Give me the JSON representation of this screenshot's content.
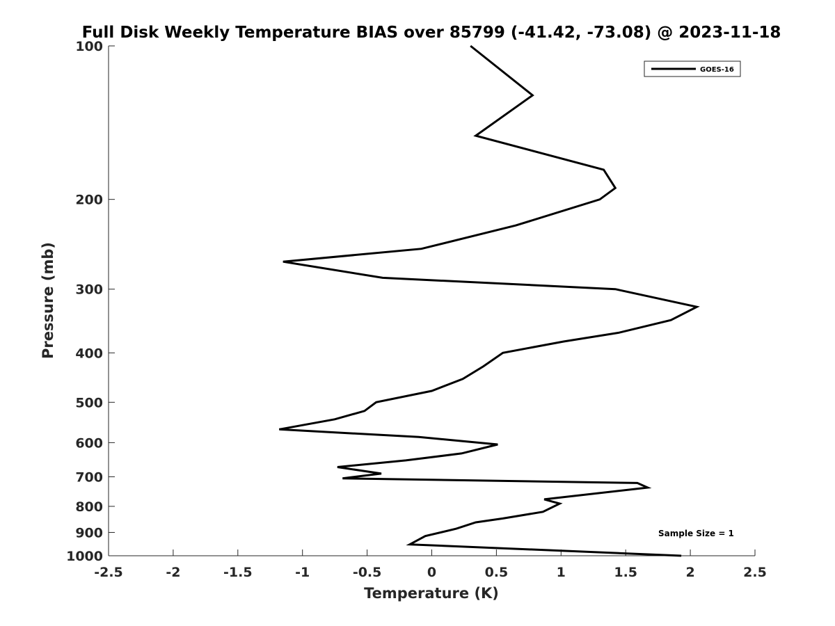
{
  "chart_data": {
    "type": "line",
    "title": "Full Disk Weekly Temperature BIAS over 85799 (-41.42, -73.08) @ 2023-11-18",
    "xlabel": "Temperature (K)",
    "ylabel": "Pressure (mb)",
    "xlim": [
      -2.5,
      2.5
    ],
    "ylim": [
      100,
      1000
    ],
    "y_scale": "log",
    "y_reversed": true,
    "x_ticks": [
      -2.5,
      -2,
      -1.5,
      -1,
      -0.5,
      0,
      0.5,
      1,
      1.5,
      2,
      2.5
    ],
    "x_tick_labels": [
      "-2.5",
      "-2",
      "-1.5",
      "-1",
      "-0.5",
      "0",
      "0.5",
      "1",
      "1.5",
      "2",
      "2.5"
    ],
    "y_ticks": [
      100,
      200,
      300,
      400,
      500,
      600,
      700,
      800,
      900,
      1000
    ],
    "y_tick_labels": [
      "100",
      "200",
      "300",
      "400",
      "500",
      "600",
      "700",
      "800",
      "900",
      "1000"
    ],
    "grid": false,
    "legend_position": "top-right",
    "series": [
      {
        "name": "GOES-16",
        "color": "#000000",
        "points": [
          {
            "x": 0.3,
            "p": 100
          },
          {
            "x": 0.78,
            "p": 125
          },
          {
            "x": 0.34,
            "p": 150
          },
          {
            "x": 1.33,
            "p": 175
          },
          {
            "x": 1.42,
            "p": 190
          },
          {
            "x": 1.3,
            "p": 200
          },
          {
            "x": 0.65,
            "p": 225
          },
          {
            "x": -0.08,
            "p": 250
          },
          {
            "x": -1.15,
            "p": 265
          },
          {
            "x": -0.38,
            "p": 285
          },
          {
            "x": 1.42,
            "p": 300
          },
          {
            "x": 2.05,
            "p": 325
          },
          {
            "x": 1.85,
            "p": 345
          },
          {
            "x": 1.45,
            "p": 365
          },
          {
            "x": 1.02,
            "p": 380
          },
          {
            "x": 0.55,
            "p": 400
          },
          {
            "x": 0.4,
            "p": 425
          },
          {
            "x": 0.24,
            "p": 450
          },
          {
            "x": 0.0,
            "p": 475
          },
          {
            "x": -0.43,
            "p": 500
          },
          {
            "x": -0.52,
            "p": 520
          },
          {
            "x": -0.75,
            "p": 540
          },
          {
            "x": -1.18,
            "p": 565
          },
          {
            "x": -0.1,
            "p": 585
          },
          {
            "x": 0.51,
            "p": 605
          },
          {
            "x": 0.23,
            "p": 630
          },
          {
            "x": -0.2,
            "p": 650
          },
          {
            "x": -0.73,
            "p": 670
          },
          {
            "x": -0.39,
            "p": 690
          },
          {
            "x": -0.69,
            "p": 705
          },
          {
            "x": 1.59,
            "p": 720
          },
          {
            "x": 1.67,
            "p": 735
          },
          {
            "x": 0.87,
            "p": 775
          },
          {
            "x": 0.99,
            "p": 790
          },
          {
            "x": 0.86,
            "p": 820
          },
          {
            "x": 0.55,
            "p": 845
          },
          {
            "x": 0.34,
            "p": 860
          },
          {
            "x": 0.19,
            "p": 885
          },
          {
            "x": -0.05,
            "p": 915
          },
          {
            "x": -0.17,
            "p": 950
          },
          {
            "x": 1.93,
            "p": 1000
          }
        ]
      }
    ],
    "annotations": [
      {
        "text": "Sample Size = 1",
        "position": "bottom-right"
      }
    ]
  }
}
